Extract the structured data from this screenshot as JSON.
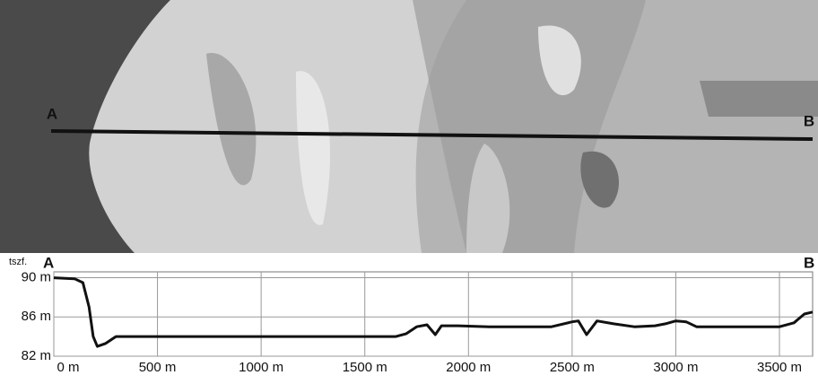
{
  "chart_data": {
    "type": "line",
    "ylabel": "tszf.",
    "annotations": [
      "A",
      "B"
    ],
    "x": [
      0,
      100,
      140,
      170,
      190,
      210,
      250,
      300,
      500,
      1000,
      1500,
      1650,
      1700,
      1750,
      1800,
      1840,
      1870,
      1950,
      2100,
      2400,
      2500,
      2530,
      2570,
      2620,
      2700,
      2800,
      2900,
      2950,
      3000,
      3050,
      3100,
      3300,
      3500,
      3570,
      3620,
      3660
    ],
    "values": [
      90.0,
      89.9,
      89.5,
      87.0,
      84.0,
      83.0,
      83.3,
      84.0,
      84.0,
      84.0,
      84.0,
      84.0,
      84.3,
      85.0,
      85.2,
      84.2,
      85.1,
      85.1,
      85.0,
      85.0,
      85.5,
      85.6,
      84.2,
      85.6,
      85.3,
      85.0,
      85.1,
      85.3,
      85.6,
      85.5,
      85.0,
      85.0,
      85.0,
      85.4,
      86.3,
      86.5
    ],
    "color": "#111111",
    "xlim": [
      0,
      3660
    ],
    "ylim": [
      82,
      90.6
    ],
    "xticks": [
      {
        "value": 0,
        "label": "0 m"
      },
      {
        "value": 500,
        "label": "500 m"
      },
      {
        "value": 1000,
        "label": "1000 m"
      },
      {
        "value": 1500,
        "label": "1500 m"
      },
      {
        "value": 2000,
        "label": "2000 m"
      },
      {
        "value": 2500,
        "label": "2500 m"
      },
      {
        "value": 3000,
        "label": "3000 m"
      },
      {
        "value": 3500,
        "label": "3500 m"
      }
    ],
    "yticks": [
      {
        "value": 82,
        "label": "82 m"
      },
      {
        "value": 86,
        "label": "86 m"
      },
      {
        "value": 90,
        "label": "90 m"
      }
    ],
    "grid": true
  }
}
